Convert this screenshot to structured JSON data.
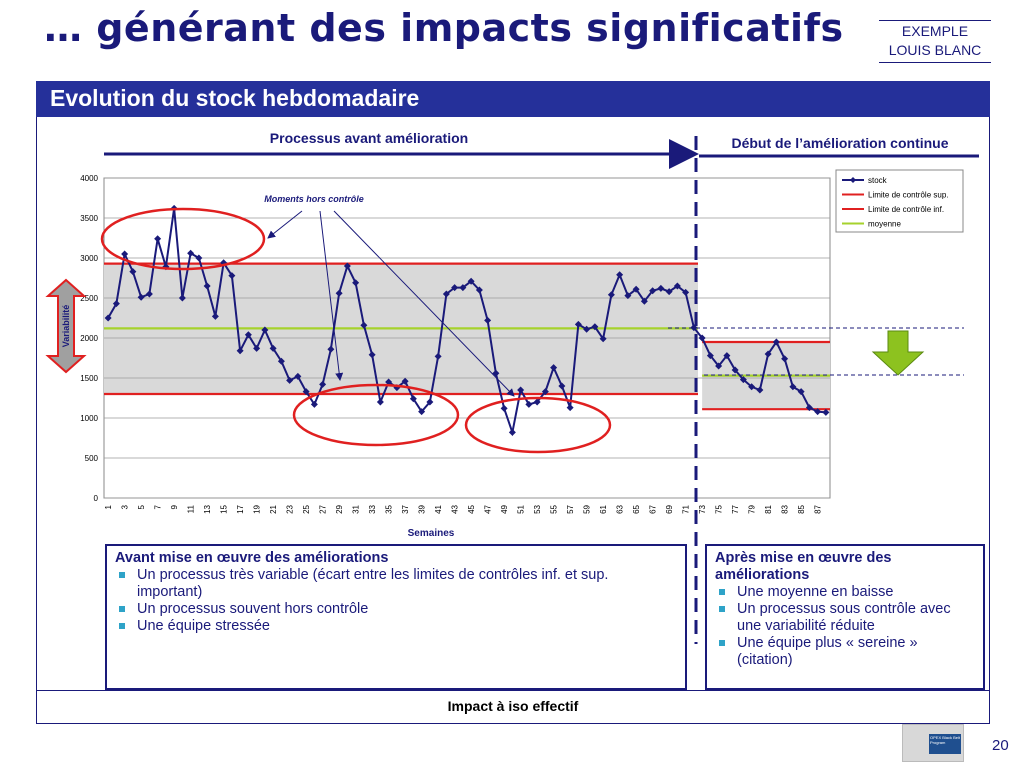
{
  "slide": {
    "title": "… générant des impacts significatifs",
    "tag_line1": "EXEMPLE",
    "tag_line2": "LOUIS BLANC",
    "header": "Evolution du stock hebdomadaire",
    "phase_before": "Processus avant amélioration",
    "phase_after": "Début de l’amélioration continue",
    "annotation": "Moments hors contrôle",
    "variability_label": "Variabilité",
    "impact": "Impact à iso effectif",
    "page_number": "20",
    "logo_text": "OPEX Black Belt Program"
  },
  "box_before": {
    "heading": "Avant mise en œuvre des améliorations",
    "items": [
      "Un processus très variable (écart entre les limites de contrôles inf. et sup. important)",
      "Un processus souvent hors contrôle",
      "Une équipe stressée"
    ]
  },
  "box_after": {
    "heading": "Après mise en œuvre des améliorations",
    "items": [
      "Une moyenne en baisse",
      "Un processus sous contrôle avec une variabilité réduite",
      "Une équipe plus « sereine » (citation)"
    ]
  },
  "colors": {
    "title": "#1a1a7a",
    "header_band": "#25309a",
    "stock_line": "#1a1a7a",
    "control_limit": "#e02020",
    "mean": "#a6d22c",
    "band": "#d9d9d9",
    "circle": "#e02020",
    "arrow_fill": "#a0a0a0",
    "arrow_down": "#8dc21f"
  },
  "chart_data": {
    "type": "line",
    "title": "",
    "xlabel": "Semaines",
    "ylabel": "",
    "ylim": [
      0,
      4000
    ],
    "yticks": [
      0,
      500,
      1000,
      1500,
      2000,
      2500,
      3000,
      3500,
      4000
    ],
    "xticks": [
      1,
      3,
      5,
      7,
      9,
      11,
      13,
      15,
      17,
      19,
      21,
      23,
      25,
      27,
      29,
      31,
      33,
      35,
      37,
      39,
      41,
      43,
      45,
      47,
      49,
      51,
      53,
      55,
      57,
      59,
      61,
      63,
      65,
      67,
      69,
      71,
      73,
      75,
      77,
      79,
      81,
      83,
      85,
      87
    ],
    "grid": true,
    "legend_position": "top-right",
    "x": [
      1,
      2,
      3,
      4,
      5,
      6,
      7,
      8,
      9,
      10,
      11,
      12,
      13,
      14,
      15,
      16,
      17,
      18,
      19,
      20,
      21,
      22,
      23,
      24,
      25,
      26,
      27,
      28,
      29,
      30,
      31,
      32,
      33,
      34,
      35,
      36,
      37,
      38,
      39,
      40,
      41,
      42,
      43,
      44,
      45,
      46,
      47,
      48,
      49,
      50,
      51,
      52,
      53,
      54,
      55,
      56,
      57,
      58,
      59,
      60,
      61,
      62,
      63,
      64,
      65,
      66,
      67,
      68,
      69,
      70,
      71,
      72,
      73,
      74,
      75,
      76,
      77,
      78,
      79,
      80,
      81,
      82,
      83,
      84,
      85,
      86,
      87,
      88
    ],
    "series": [
      {
        "name": "stock",
        "values": [
          2250,
          2430,
          3050,
          2830,
          2510,
          2550,
          3240,
          2890,
          3620,
          2500,
          3060,
          3000,
          2650,
          2270,
          2940,
          2780,
          1840,
          2040,
          1870,
          2100,
          1870,
          1710,
          1470,
          1520,
          1330,
          1170,
          1420,
          1860,
          2560,
          2900,
          2690,
          2160,
          1790,
          1200,
          1450,
          1380,
          1460,
          1240,
          1080,
          1200,
          1770,
          2550,
          2630,
          2630,
          2710,
          2600,
          2220,
          1560,
          1120,
          820,
          1350,
          1170,
          1200,
          1330,
          1630,
          1400,
          1130,
          2170,
          2110,
          2140,
          1990,
          2540,
          2790,
          2530,
          2610,
          2460,
          2590,
          2620,
          2580,
          2650,
          2570,
          2130,
          2000,
          1780,
          1650,
          1780,
          1600,
          1480,
          1390,
          1350,
          1800,
          1950,
          1740,
          1390,
          1330,
          1130,
          1080,
          1070
        ]
      },
      {
        "name": "Limite de contrôle sup.",
        "segments": [
          {
            "from": 1,
            "to": 72,
            "value": 2930
          },
          {
            "from": 73,
            "to": 88,
            "value": 1950
          }
        ]
      },
      {
        "name": "Limite de contrôle inf.",
        "segments": [
          {
            "from": 1,
            "to": 72,
            "value": 1300
          },
          {
            "from": 73,
            "to": 88,
            "value": 1110
          }
        ]
      },
      {
        "name": "moyenne",
        "segments": [
          {
            "from": 1,
            "to": 72,
            "value": 2120
          },
          {
            "from": 73,
            "to": 88,
            "value": 1530
          }
        ]
      }
    ]
  }
}
